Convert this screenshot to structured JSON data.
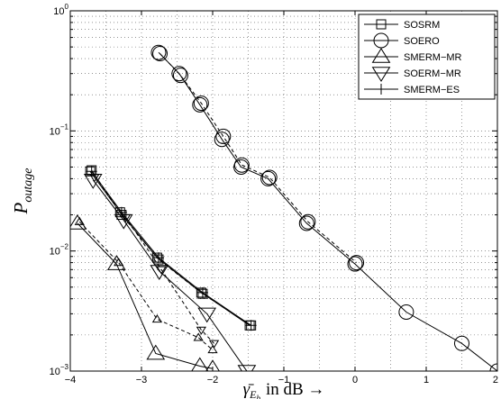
{
  "chart_data": {
    "type": "line",
    "x_scale": "linear",
    "y_scale": "log",
    "xlim": [
      -4,
      2
    ],
    "ylim": [
      0.001,
      1
    ],
    "grid": true,
    "legend_position": "top-right",
    "x_ticks": [
      -4,
      -3,
      -2,
      -1,
      0,
      1,
      2
    ],
    "x_tick_labels": [
      "−4",
      "−3",
      "−2",
      "−1",
      "0",
      "1",
      "2"
    ],
    "y_ticks": [
      0.001,
      0.01,
      0.1,
      1
    ],
    "y_tick_labels": [
      {
        "base": "10",
        "exp": "−3"
      },
      {
        "base": "10",
        "exp": "−2"
      },
      {
        "base": "10",
        "exp": "−1"
      },
      {
        "base": "10",
        "exp": "0"
      }
    ],
    "xlabel": {
      "symbol": "γ̄",
      "subscript": "E",
      "subsubscript": "b",
      "rest": "in dB →"
    },
    "ylabel": {
      "main": "P",
      "subscript": "outage"
    },
    "series": [
      {
        "name": "SOSRM",
        "marker": "square",
        "style": "solid",
        "x": [
          -3.72,
          -3.3,
          -2.78,
          -2.16,
          -1.48
        ],
        "y": [
          0.046,
          0.021,
          0.0088,
          0.0045,
          0.0024
        ]
      },
      {
        "name": "SOSRM",
        "marker": "square",
        "style": "dashed",
        "x": [
          -3.7,
          -3.28,
          -2.76,
          -2.14,
          -1.46
        ],
        "y": [
          0.047,
          0.02,
          0.0085,
          0.0044,
          0.0024
        ]
      },
      {
        "name": "SOERO",
        "marker": "circle",
        "style": "solid",
        "x": [
          -2.76,
          -2.47,
          -2.18,
          -1.87,
          -1.6,
          -1.22,
          -0.68,
          0,
          0.72,
          1.5,
          2.0
        ],
        "y": [
          0.45,
          0.3,
          0.165,
          0.085,
          0.05,
          0.04,
          0.017,
          0.0078,
          0.0031,
          0.0017,
          0.001
        ]
      },
      {
        "name": "SOERO",
        "marker": "circle",
        "style": "dashed",
        "x": [
          -2.74,
          -2.45,
          -2.16,
          -1.85,
          -1.59,
          -1.2,
          -0.66,
          0.02
        ],
        "y": [
          0.44,
          0.29,
          0.17,
          0.09,
          0.052,
          0.041,
          0.0175,
          0.008
        ]
      },
      {
        "name": "SMERM−MR",
        "marker": "triangle-up",
        "style": "solid",
        "x": [
          -3.9,
          -3.35,
          -2.8,
          -2.18,
          -2.0
        ],
        "y": [
          0.017,
          0.0078,
          0.0014,
          0.0011,
          0.00105
        ]
      },
      {
        "name": "SMERM−MR",
        "marker": "triangle-up-small",
        "style": "dashed",
        "x": [
          -3.87,
          -3.32,
          -2.78,
          -2.2,
          -2.0
        ],
        "y": [
          0.0175,
          0.008,
          0.0027,
          0.0019,
          0.0015
        ]
      },
      {
        "name": "SOERM−MR",
        "marker": "triangle-down",
        "style": "solid",
        "x": [
          -3.68,
          -3.25,
          -2.75,
          -2.08,
          -1.52,
          -1.35
        ],
        "y": [
          0.039,
          0.018,
          0.0068,
          0.003,
          0.001,
          0.0006
        ]
      },
      {
        "name": "SOERM−MR",
        "marker": "triangle-down-small",
        "style": "dashed",
        "x": [
          -3.66,
          -3.22,
          -2.72,
          -2.16,
          -1.98
        ],
        "y": [
          0.041,
          0.019,
          0.007,
          0.0022,
          0.0017
        ]
      },
      {
        "name": "SMERM−ES",
        "marker": "plus",
        "style": "solid",
        "x": [
          -3.7,
          -3.28,
          -2.76,
          -2.14,
          -1.46
        ],
        "y": [
          0.046,
          0.021,
          0.0088,
          0.0045,
          0.0024
        ]
      }
    ],
    "legend": [
      {
        "label": "SOSRM",
        "marker": "square"
      },
      {
        "label": "SOERO",
        "marker": "circle"
      },
      {
        "label": "SMERM−MR",
        "marker": "triangle-up"
      },
      {
        "label": "SOERM−MR",
        "marker": "triangle-down"
      },
      {
        "label": "SMERM−ES",
        "marker": "plus"
      }
    ]
  }
}
